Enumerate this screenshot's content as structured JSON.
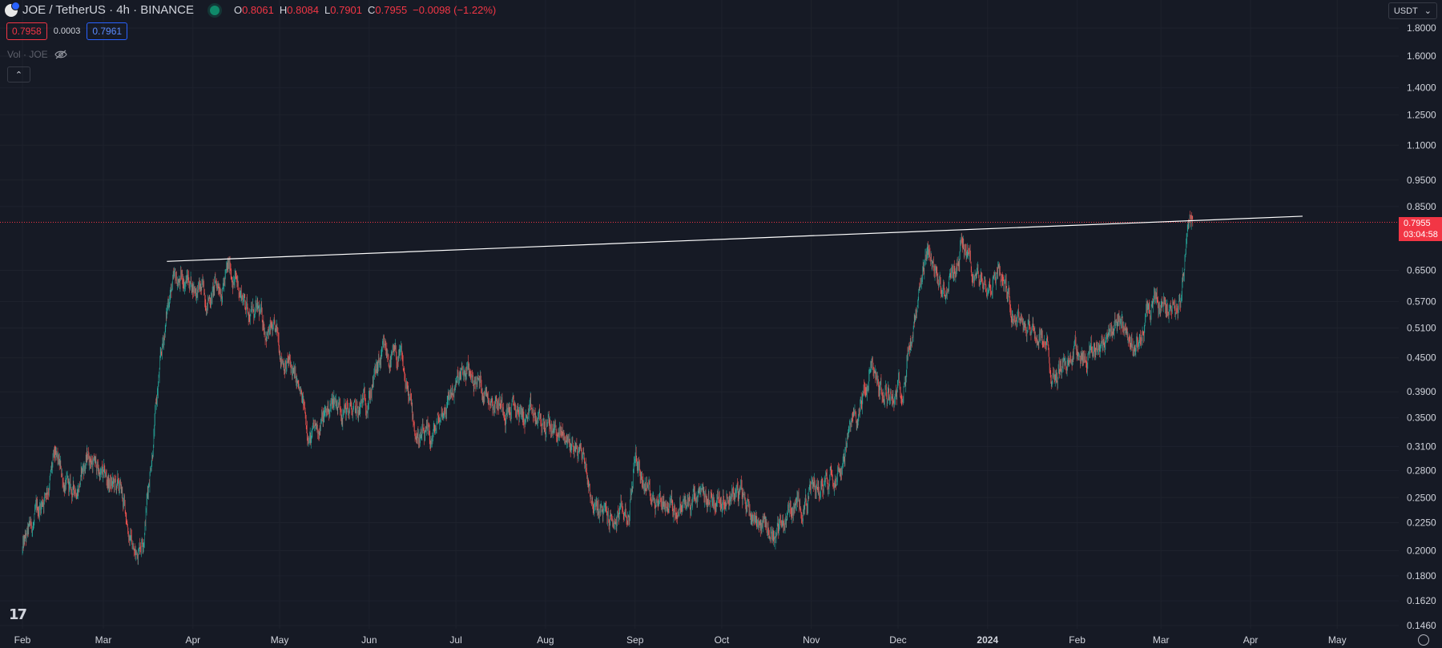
{
  "header": {
    "symbol": "JOE / TetherUS · 4h · BINANCE",
    "ohlc": {
      "o_label": "O",
      "o": "0.8061",
      "h_label": "H",
      "h": "0.8084",
      "l_label": "L",
      "l": "0.7901",
      "c_label": "C",
      "c": "0.7955",
      "change": "−0.0098 (−1.22%)"
    },
    "bid": "0.7958",
    "spread": "0.0003",
    "ask": "0.7961",
    "volume_label": "Vol · JOE"
  },
  "currency": "USDT",
  "last_price": "0.7955",
  "countdown": "03:04:58",
  "colors": {
    "background": "#161a25",
    "up": "#26a69a",
    "down": "#ef5350",
    "trendline": "#ffffff",
    "price_line": "#f23645",
    "axis_text": "#d1d4dc"
  },
  "chart_data": {
    "type": "candlestick",
    "scale": "log",
    "timeframe": "4h",
    "y_ticks": [
      1.8,
      1.6,
      1.4,
      1.25,
      1.1,
      0.95,
      0.85,
      0.65,
      0.57,
      0.51,
      0.45,
      0.39,
      0.35,
      0.31,
      0.28,
      0.25,
      0.225,
      0.2,
      0.18,
      0.162,
      0.146
    ],
    "y_tick_labels": [
      "1.8000",
      "1.6000",
      "1.4000",
      "1.2500",
      "1.1000",
      "0.9500",
      "0.8500",
      "0.6500",
      "0.5700",
      "0.5100",
      "0.4500",
      "0.3900",
      "0.3500",
      "0.3100",
      "0.2800",
      "0.2500",
      "0.2250",
      "0.2000",
      "0.1800",
      "0.1620",
      "0.1460"
    ],
    "x_labels": [
      "Feb",
      "Mar",
      "Apr",
      "May",
      "Jun",
      "Jul",
      "Aug",
      "Sep",
      "Oct",
      "Nov",
      "Dec",
      "2024",
      "Feb",
      "Mar",
      "Apr",
      "May"
    ],
    "y_range": [
      0.14,
      1.9
    ],
    "price_path": [
      {
        "date": "2023-02-01",
        "price": 0.2
      },
      {
        "date": "2023-02-06",
        "price": 0.23
      },
      {
        "date": "2023-02-12",
        "price": 0.29
      },
      {
        "date": "2023-02-18",
        "price": 0.25
      },
      {
        "date": "2023-02-24",
        "price": 0.3
      },
      {
        "date": "2023-03-01",
        "price": 0.27
      },
      {
        "date": "2023-03-07",
        "price": 0.255
      },
      {
        "date": "2023-03-12",
        "price": 0.195
      },
      {
        "date": "2023-03-15",
        "price": 0.22
      },
      {
        "date": "2023-03-20",
        "price": 0.4
      },
      {
        "date": "2023-03-24",
        "price": 0.6
      },
      {
        "date": "2023-03-30",
        "price": 0.63
      },
      {
        "date": "2023-04-06",
        "price": 0.58
      },
      {
        "date": "2023-04-14",
        "price": 0.65
      },
      {
        "date": "2023-04-20",
        "price": 0.56
      },
      {
        "date": "2023-04-28",
        "price": 0.5
      },
      {
        "date": "2023-05-05",
        "price": 0.43
      },
      {
        "date": "2023-05-12",
        "price": 0.32
      },
      {
        "date": "2023-05-20",
        "price": 0.38
      },
      {
        "date": "2023-05-28",
        "price": 0.35
      },
      {
        "date": "2023-06-06",
        "price": 0.45
      },
      {
        "date": "2023-06-12",
        "price": 0.44
      },
      {
        "date": "2023-06-17",
        "price": 0.33
      },
      {
        "date": "2023-06-22",
        "price": 0.31
      },
      {
        "date": "2023-06-29",
        "price": 0.39
      },
      {
        "date": "2023-07-05",
        "price": 0.42
      },
      {
        "date": "2023-07-15",
        "price": 0.38
      },
      {
        "date": "2023-07-25",
        "price": 0.35
      },
      {
        "date": "2023-08-05",
        "price": 0.33
      },
      {
        "date": "2023-08-14",
        "price": 0.3
      },
      {
        "date": "2023-08-18",
        "price": 0.24
      },
      {
        "date": "2023-08-24",
        "price": 0.225
      },
      {
        "date": "2023-08-30",
        "price": 0.235
      },
      {
        "date": "2023-09-01",
        "price": 0.3
      },
      {
        "date": "2023-09-05",
        "price": 0.26
      },
      {
        "date": "2023-09-15",
        "price": 0.24
      },
      {
        "date": "2023-09-25",
        "price": 0.245
      },
      {
        "date": "2023-10-05",
        "price": 0.26
      },
      {
        "date": "2023-10-12",
        "price": 0.235
      },
      {
        "date": "2023-10-19",
        "price": 0.215
      },
      {
        "date": "2023-10-26",
        "price": 0.24
      },
      {
        "date": "2023-11-03",
        "price": 0.26
      },
      {
        "date": "2023-11-12",
        "price": 0.3
      },
      {
        "date": "2023-11-18",
        "price": 0.37
      },
      {
        "date": "2023-11-22",
        "price": 0.43
      },
      {
        "date": "2023-11-26",
        "price": 0.38
      },
      {
        "date": "2023-12-02",
        "price": 0.4
      },
      {
        "date": "2023-12-07",
        "price": 0.52
      },
      {
        "date": "2023-12-12",
        "price": 0.7
      },
      {
        "date": "2023-12-15",
        "price": 0.6
      },
      {
        "date": "2023-12-20",
        "price": 0.63
      },
      {
        "date": "2023-12-23",
        "price": 0.74
      },
      {
        "date": "2023-12-28",
        "price": 0.62
      },
      {
        "date": "2024-01-05",
        "price": 0.66
      },
      {
        "date": "2024-01-10",
        "price": 0.56
      },
      {
        "date": "2024-01-18",
        "price": 0.5
      },
      {
        "date": "2024-01-25",
        "price": 0.42
      },
      {
        "date": "2024-01-31",
        "price": 0.47
      },
      {
        "date": "2024-02-06",
        "price": 0.46
      },
      {
        "date": "2024-02-14",
        "price": 0.52
      },
      {
        "date": "2024-02-22",
        "price": 0.48
      },
      {
        "date": "2024-02-27",
        "price": 0.55
      },
      {
        "date": "2024-03-03",
        "price": 0.57
      },
      {
        "date": "2024-03-06",
        "price": 0.56
      },
      {
        "date": "2024-03-08",
        "price": 0.6
      },
      {
        "date": "2024-03-10",
        "price": 0.72
      },
      {
        "date": "2024-03-12",
        "price": 0.8
      }
    ],
    "trendline": [
      {
        "date": "2023-03-23",
        "price": 0.675
      },
      {
        "date": "2024-04-19",
        "price": 0.816
      }
    ],
    "last_price": 0.7955
  }
}
